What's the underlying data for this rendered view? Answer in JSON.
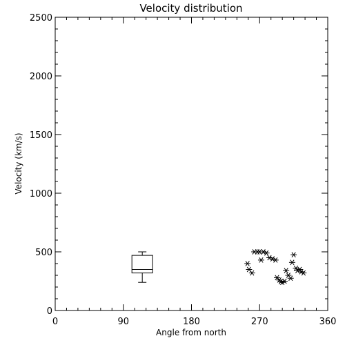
{
  "chart_data": {
    "type": "scatter",
    "title": "Velocity distribution",
    "xlabel": "Angle from north",
    "ylabel": "Velocity (km/s)",
    "xlim": [
      0,
      360
    ],
    "ylim": [
      0,
      2500
    ],
    "x_ticks": [
      0,
      90,
      180,
      270,
      360
    ],
    "y_ticks": [
      0,
      500,
      1000,
      1500,
      2000,
      2500
    ],
    "grid": false,
    "marker": "asterisk",
    "color": "#000000",
    "boxplot": {
      "x": 115,
      "min": 240,
      "q1": 320,
      "median": 350,
      "q3": 470,
      "max": 500
    },
    "points": [
      {
        "x": 254,
        "y": 400
      },
      {
        "x": 256,
        "y": 350
      },
      {
        "x": 260,
        "y": 320
      },
      {
        "x": 263,
        "y": 500
      },
      {
        "x": 267,
        "y": 500
      },
      {
        "x": 270,
        "y": 500
      },
      {
        "x": 272,
        "y": 430
      },
      {
        "x": 275,
        "y": 500
      },
      {
        "x": 279,
        "y": 490
      },
      {
        "x": 283,
        "y": 450
      },
      {
        "x": 287,
        "y": 440
      },
      {
        "x": 291,
        "y": 430
      },
      {
        "x": 293,
        "y": 280
      },
      {
        "x": 296,
        "y": 260
      },
      {
        "x": 298,
        "y": 245
      },
      {
        "x": 300,
        "y": 240
      },
      {
        "x": 303,
        "y": 250
      },
      {
        "x": 305,
        "y": 340
      },
      {
        "x": 308,
        "y": 300
      },
      {
        "x": 311,
        "y": 275
      },
      {
        "x": 313,
        "y": 410
      },
      {
        "x": 315,
        "y": 475
      },
      {
        "x": 318,
        "y": 360
      },
      {
        "x": 320,
        "y": 340
      },
      {
        "x": 323,
        "y": 350
      },
      {
        "x": 325,
        "y": 330
      },
      {
        "x": 328,
        "y": 320
      }
    ]
  }
}
